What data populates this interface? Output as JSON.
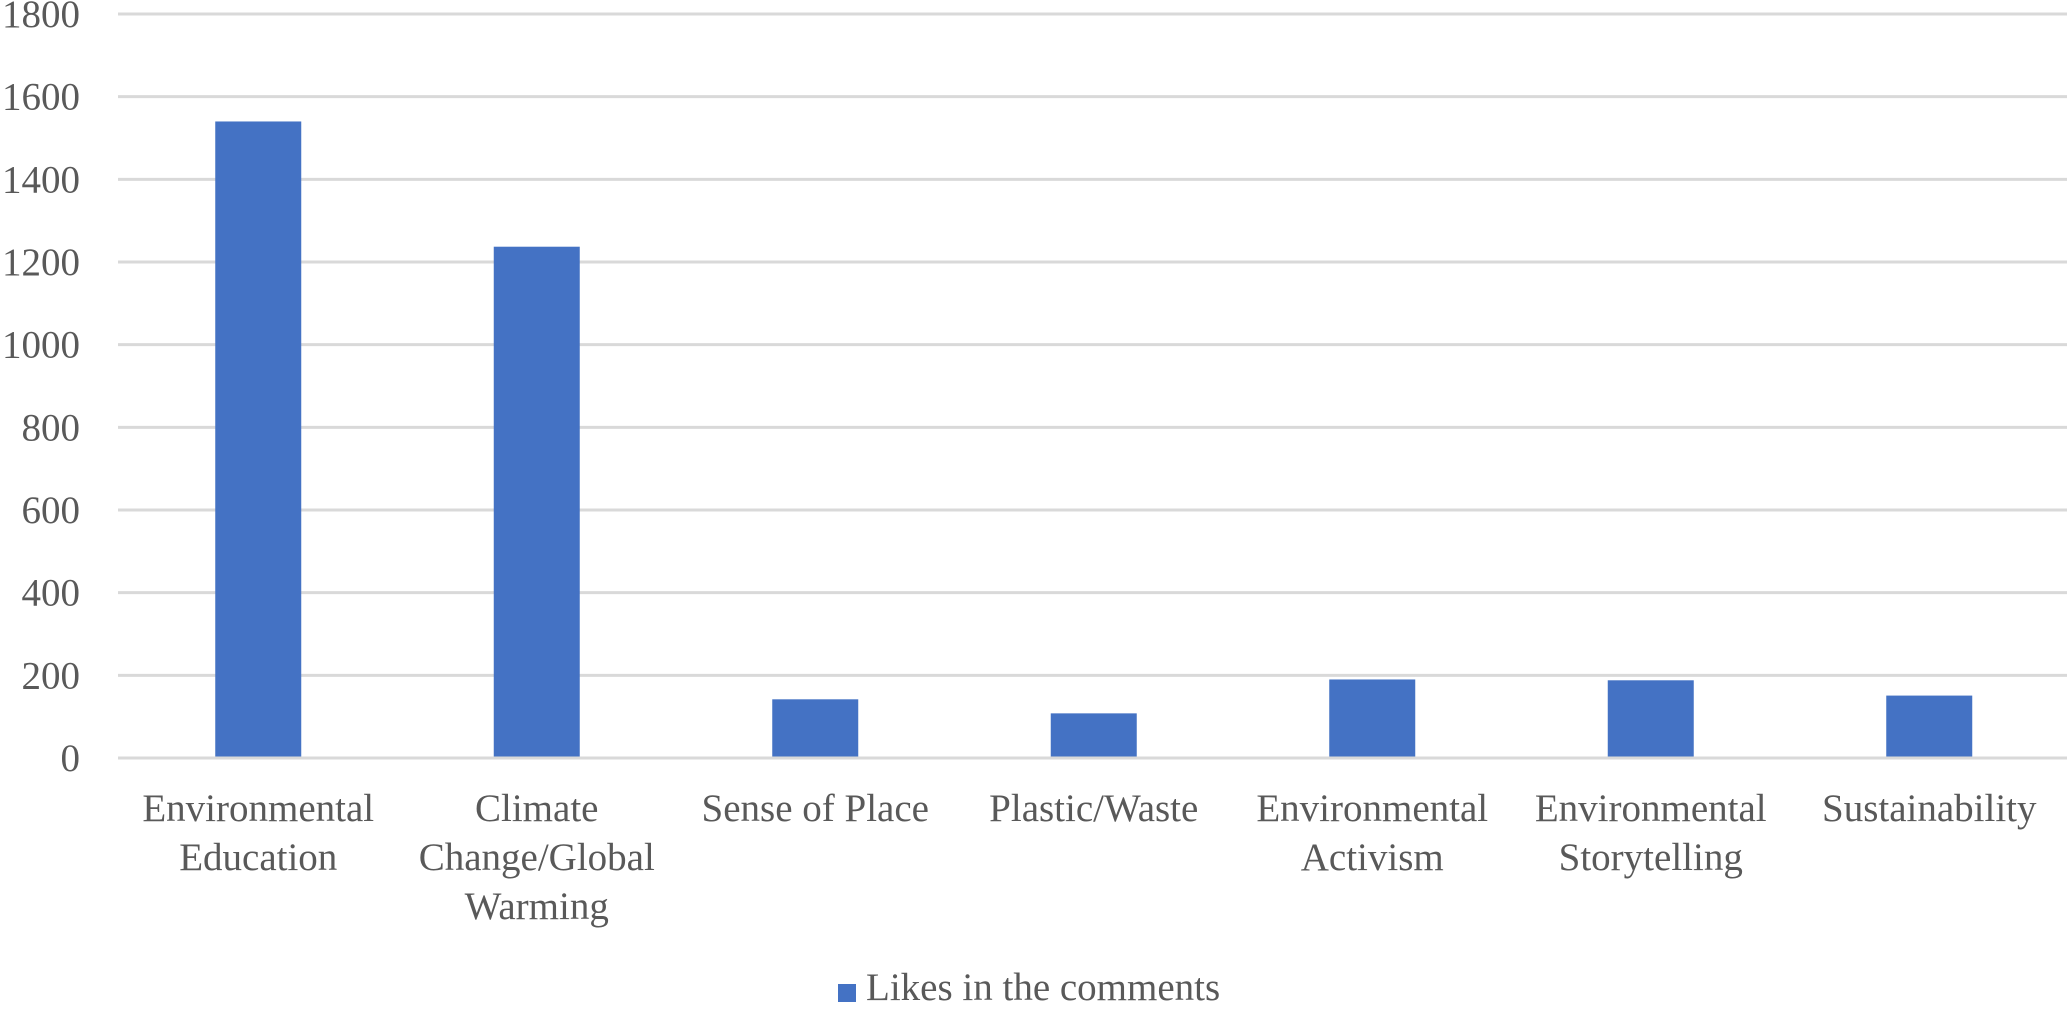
{
  "chart_data": {
    "type": "bar",
    "title": "",
    "xlabel": "",
    "ylabel": "",
    "categories": [
      [
        "Environmental",
        "Education"
      ],
      [
        "Climate",
        "Change/Global",
        "Warming"
      ],
      [
        "Sense of Place"
      ],
      [
        "Plastic/Waste"
      ],
      [
        "Environmental",
        "Activism"
      ],
      [
        "Environmental",
        "Storytelling"
      ],
      [
        "Sustainability"
      ]
    ],
    "series": [
      {
        "name": "Likes in the comments",
        "color": "#4472C4",
        "values": [
          1540,
          1237,
          142,
          108,
          190,
          188,
          151
        ]
      }
    ],
    "ylim": [
      0,
      1800
    ],
    "yticks": [
      0,
      200,
      400,
      600,
      800,
      1000,
      1200,
      1400,
      1600,
      1800
    ],
    "grid": true,
    "gridline_color": "#D9D9D9",
    "legend_position": "bottom"
  }
}
